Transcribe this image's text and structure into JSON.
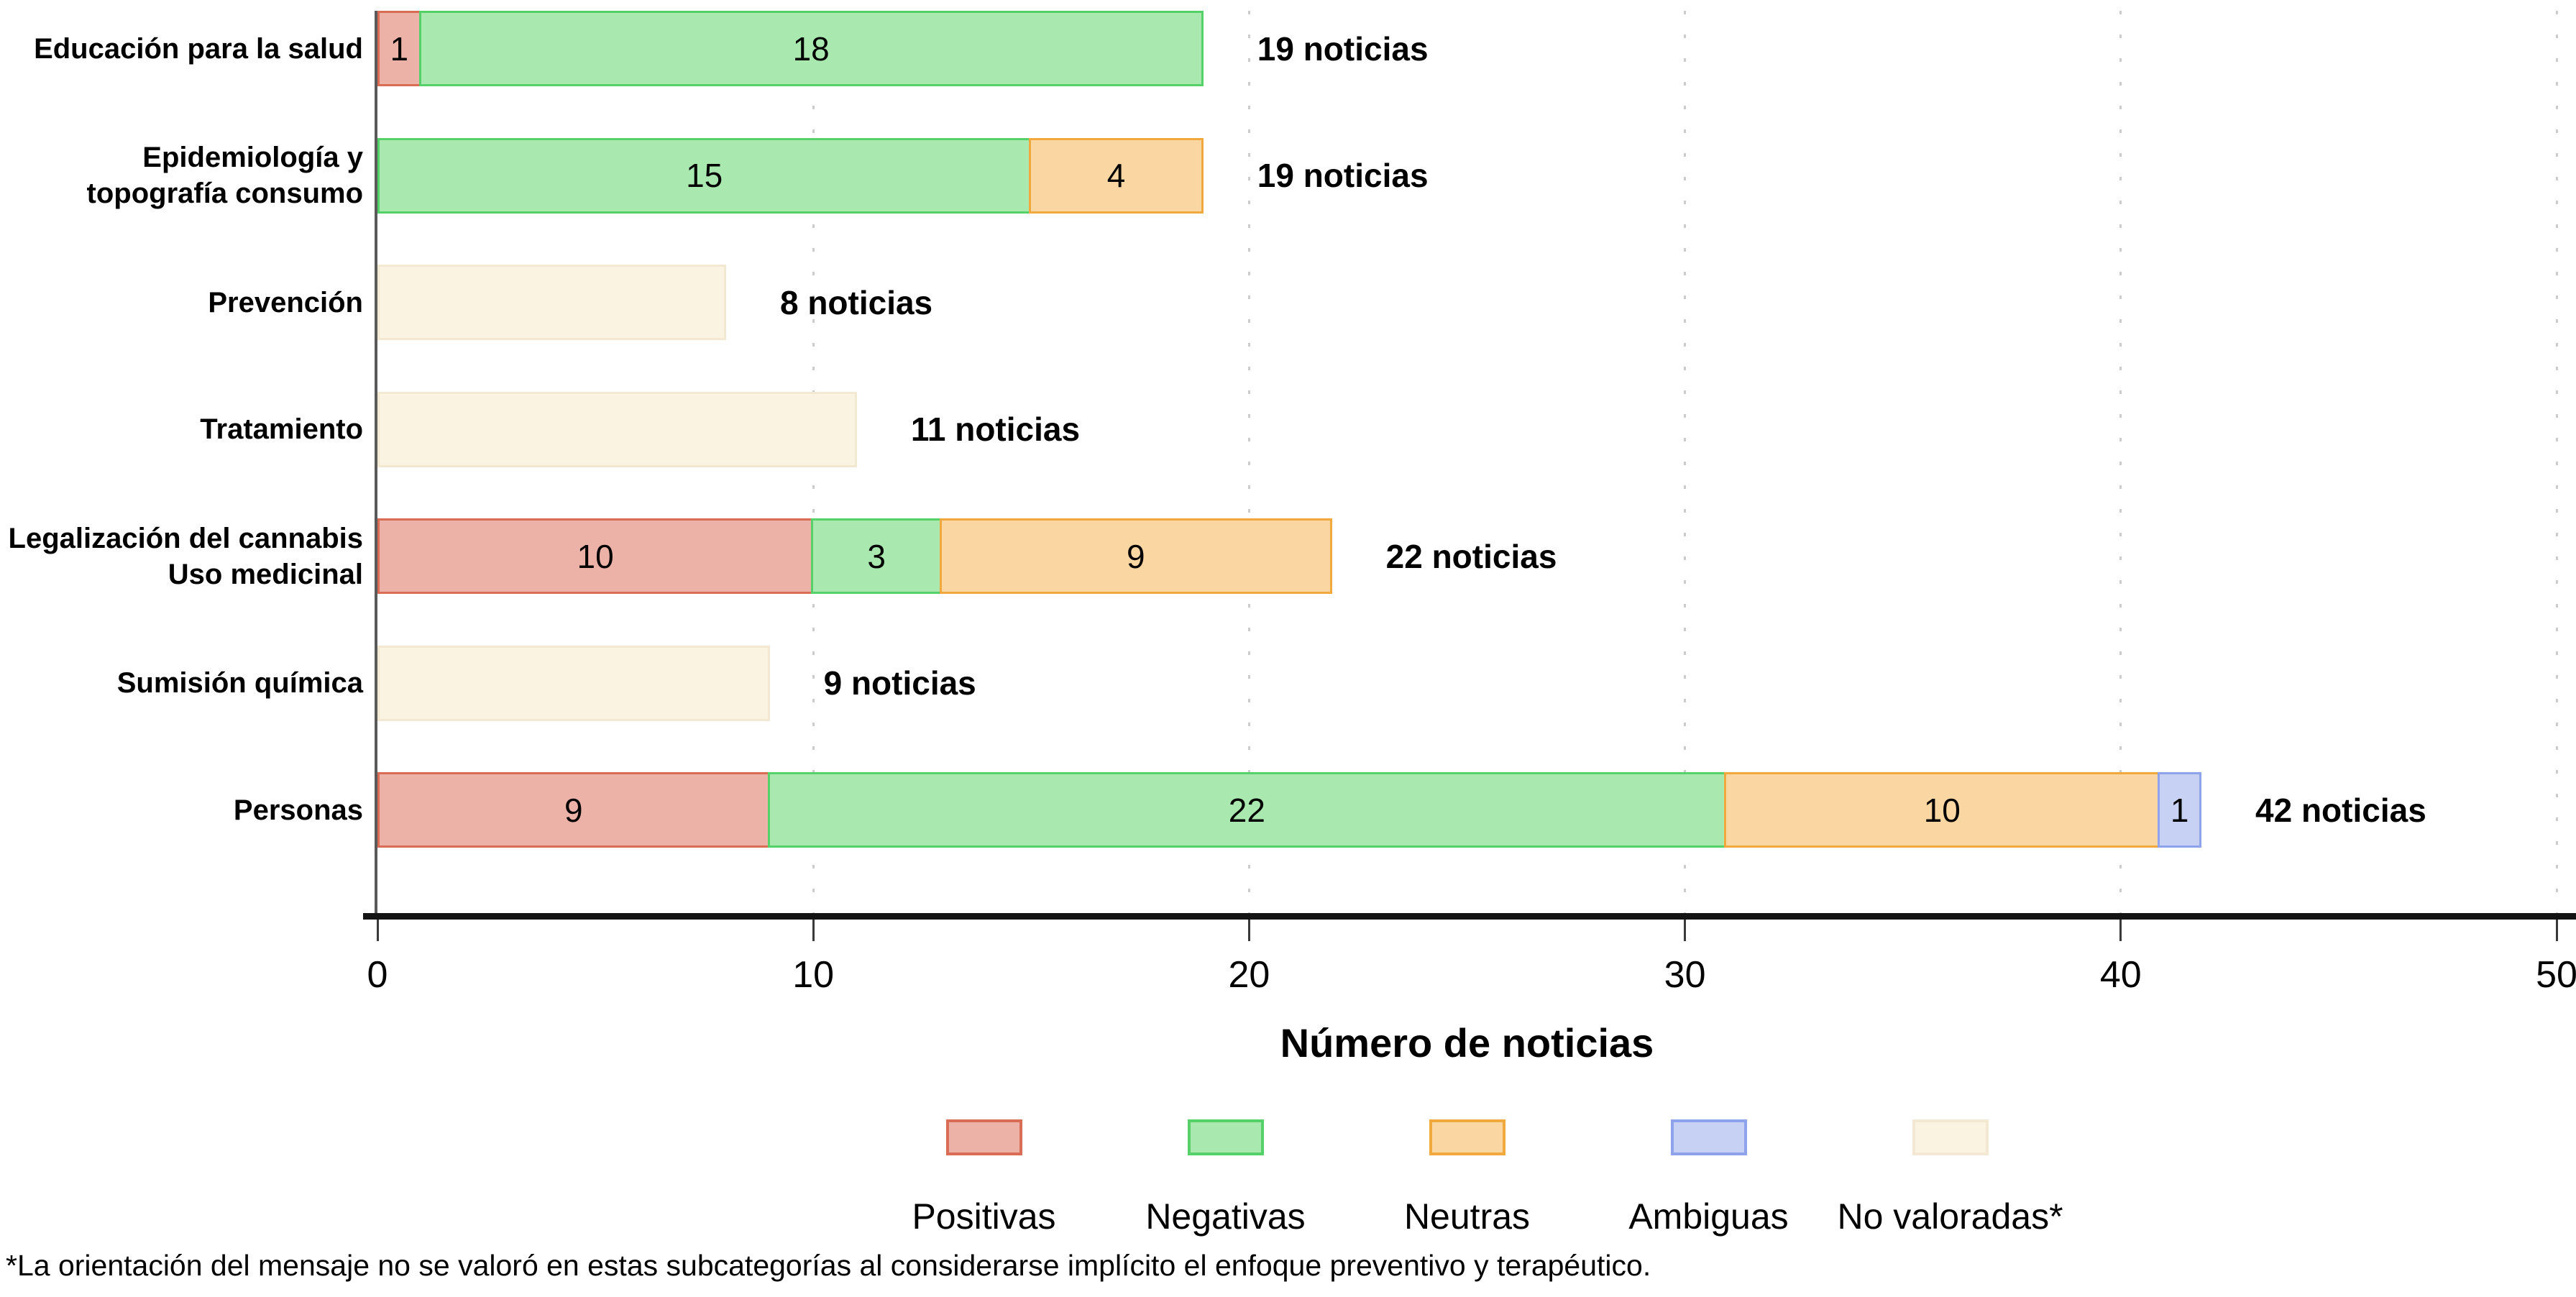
{
  "chart_data": {
    "type": "bar",
    "orientation": "horizontal",
    "stacked": true,
    "title": "",
    "xlabel": "Número de noticias",
    "xlim": [
      0,
      50
    ],
    "xticks": [
      0,
      10,
      20,
      30,
      40,
      50
    ],
    "grid": "dotted-vertical",
    "legend_position": "bottom",
    "categories": [
      "Educación para la salud",
      "Epidemiología y topografía consumo",
      "Prevención",
      "Tratamiento",
      "Legalización del cannabis Uso medicinal",
      "Sumisión química",
      "Personas"
    ],
    "series": [
      {
        "name": "Positivas",
        "values": [
          1,
          0,
          0,
          0,
          10,
          0,
          9
        ]
      },
      {
        "name": "Negativas",
        "values": [
          18,
          15,
          0,
          0,
          3,
          0,
          22
        ]
      },
      {
        "name": "Neutras",
        "values": [
          0,
          4,
          0,
          0,
          9,
          0,
          10
        ]
      },
      {
        "name": "Ambiguas",
        "values": [
          0,
          0,
          0,
          0,
          0,
          0,
          1
        ]
      },
      {
        "name": "No valoradas*",
        "values": [
          0,
          0,
          8,
          11,
          0,
          9,
          0
        ]
      }
    ],
    "totals": [
      "19 noticias",
      "19 noticias",
      "8 noticias",
      "11 noticias",
      "22 noticias",
      "9 noticias",
      "42 noticias"
    ]
  },
  "rows": [
    {
      "lines": [
        "Educación para la salud"
      ],
      "total": "19 noticias",
      "segments": [
        {
          "series": "positivas",
          "value": 1
        },
        {
          "series": "negativas",
          "value": 18
        }
      ]
    },
    {
      "lines": [
        "Epidemiología y",
        "topografía consumo"
      ],
      "total": "19 noticias",
      "segments": [
        {
          "series": "negativas",
          "value": 15
        },
        {
          "series": "neutras",
          "value": 4
        }
      ]
    },
    {
      "lines": [
        "Prevención"
      ],
      "total": "8 noticias",
      "segments": [
        {
          "series": "no_valoradas",
          "value": 8,
          "hide_value": true
        }
      ]
    },
    {
      "lines": [
        "Tratamiento"
      ],
      "total": "11 noticias",
      "segments": [
        {
          "series": "no_valoradas",
          "value": 11,
          "hide_value": true
        }
      ]
    },
    {
      "lines": [
        "Legalización del cannabis",
        "Uso medicinal"
      ],
      "total": "22 noticias",
      "segments": [
        {
          "series": "positivas",
          "value": 10
        },
        {
          "series": "negativas",
          "value": 3
        },
        {
          "series": "neutras",
          "value": 9
        }
      ]
    },
    {
      "lines": [
        "Sumisión química"
      ],
      "total": "9 noticias",
      "segments": [
        {
          "series": "no_valoradas",
          "value": 9,
          "hide_value": true
        }
      ]
    },
    {
      "lines": [
        "Personas"
      ],
      "total": "42 noticias",
      "segments": [
        {
          "series": "positivas",
          "value": 9
        },
        {
          "series": "negativas",
          "value": 22
        },
        {
          "series": "neutras",
          "value": 10
        },
        {
          "series": "ambiguas",
          "value": 1
        }
      ]
    }
  ],
  "axis": {
    "tick_labels": [
      "0",
      "10",
      "20",
      "30",
      "40",
      "50"
    ],
    "label": "Número de noticias"
  },
  "legend": {
    "items": [
      {
        "key": "positivas",
        "label": "Positivas"
      },
      {
        "key": "negativas",
        "label": "Negativas"
      },
      {
        "key": "neutras",
        "label": "Neutras"
      },
      {
        "key": "ambiguas",
        "label": "Ambiguas"
      },
      {
        "key": "no_valoradas",
        "label": "No valoradas*"
      }
    ]
  },
  "colors": {
    "positivas": {
      "fill": "#ECB2A8",
      "stroke": "#D96C55"
    },
    "negativas": {
      "fill": "#A9E8AF",
      "stroke": "#56D169"
    },
    "neutras": {
      "fill": "#F9D6A2",
      "stroke": "#F1A83C"
    },
    "ambiguas": {
      "fill": "#C7D1F4",
      "stroke": "#8FA3EC"
    },
    "no_valoradas": {
      "fill": "#FBF3E2",
      "stroke": "#F3E9D2"
    },
    "y_axis": "#5A5A5A",
    "x_axis": "#141414",
    "tick": "#3A3A3A",
    "gridline": "#CCCCCC"
  },
  "footnote": "*La orientación del mensaje no se valoró en estas subcategorías al considerarse implícito el enfoque preventivo y terapéutico."
}
